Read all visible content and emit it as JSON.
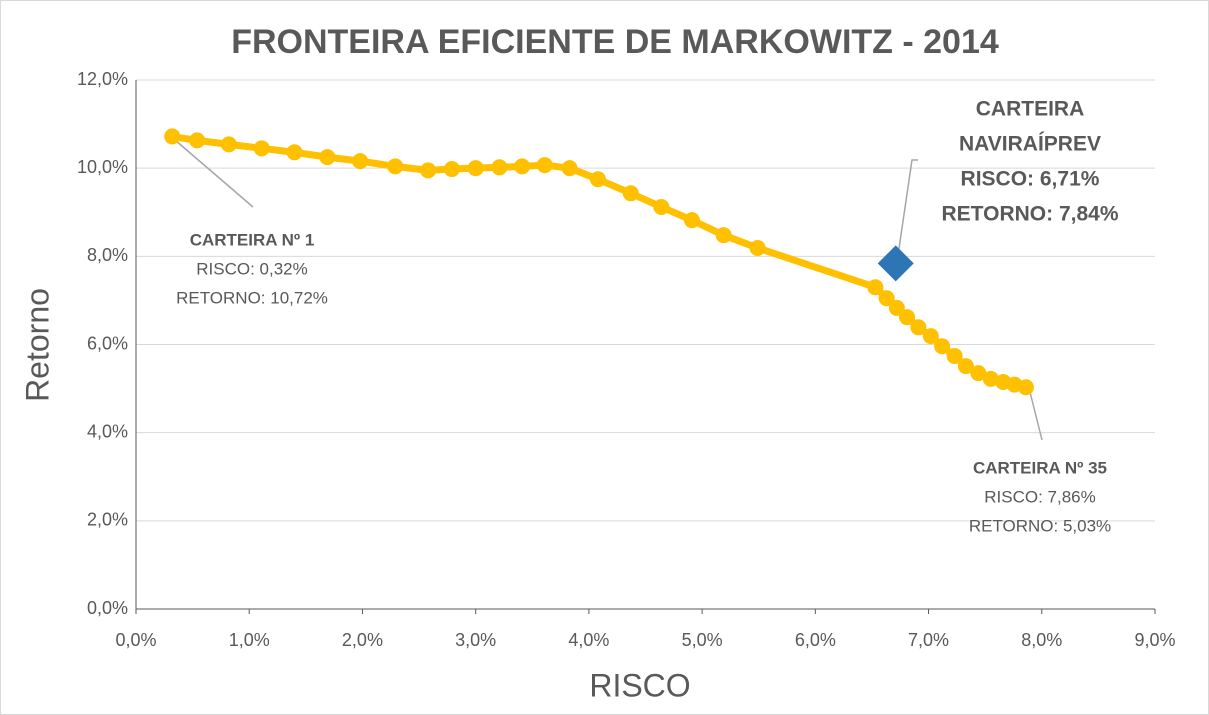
{
  "chart_data": {
    "type": "scatter",
    "title": "FRONTEIRA EFICIENTE DE MARKOWITZ - 2014",
    "xlabel": "RISCO",
    "ylabel": "Retorno",
    "x": [
      0.32,
      0.54,
      0.82,
      1.11,
      1.4,
      1.69,
      1.98,
      2.29,
      2.58,
      2.79,
      3.0,
      3.21,
      3.41,
      3.61,
      3.83,
      4.08,
      4.37,
      4.64,
      4.91,
      5.19,
      5.49,
      6.53,
      6.63,
      6.72,
      6.81,
      6.91,
      7.02,
      7.12,
      7.23,
      7.33,
      7.44,
      7.55,
      7.66,
      7.76,
      7.86
    ],
    "values": [
      10.72,
      10.63,
      10.54,
      10.45,
      10.36,
      10.25,
      10.16,
      10.04,
      9.95,
      9.98,
      10.0,
      10.02,
      10.04,
      10.07,
      10.0,
      9.75,
      9.43,
      9.12,
      8.82,
      8.48,
      8.19,
      7.3,
      7.05,
      6.83,
      6.62,
      6.39,
      6.19,
      5.96,
      5.74,
      5.51,
      5.35,
      5.22,
      5.15,
      5.09,
      5.03
    ],
    "color": "#ffc000",
    "point": {
      "x": 6.71,
      "y": 7.84,
      "color": "#2e75b6"
    },
    "xlim": [
      0,
      9
    ],
    "ylim": [
      0,
      12
    ],
    "xticks": [
      {
        "value": 0,
        "label": "0,0%"
      },
      {
        "value": 1,
        "label": "1,0%"
      },
      {
        "value": 2,
        "label": "2,0%"
      },
      {
        "value": 3,
        "label": "3,0%"
      },
      {
        "value": 4,
        "label": "4,0%"
      },
      {
        "value": 5,
        "label": "5,0%"
      },
      {
        "value": 6,
        "label": "6,0%"
      },
      {
        "value": 7,
        "label": "7,0%"
      },
      {
        "value": 8,
        "label": "8,0%"
      },
      {
        "value": 9,
        "label": "9,0%"
      }
    ],
    "yticks": [
      {
        "value": 0,
        "label": "0,0%"
      },
      {
        "value": 2,
        "label": "2,0%"
      },
      {
        "value": 4,
        "label": "4,0%"
      },
      {
        "value": 6,
        "label": "6,0%"
      },
      {
        "value": 8,
        "label": "8,0%"
      },
      {
        "value": 10,
        "label": "10,0%"
      },
      {
        "value": 12,
        "label": "12,0%"
      }
    ],
    "grid": true,
    "annotations": [
      {
        "lines": [
          "CARTEIRA Nº 1",
          "RISCO: 0,32%",
          "RETORNO: 10,72%"
        ]
      },
      {
        "lines": [
          "CARTEIRA",
          "NAVIRAÍPREV",
          "RISCO: 6,71%",
          "RETORNO: 7,84%"
        ]
      },
      {
        "lines": [
          "CARTEIRA Nº 35",
          "RISCO: 7,86%",
          "RETORNO: 5,03%"
        ]
      }
    ]
  }
}
